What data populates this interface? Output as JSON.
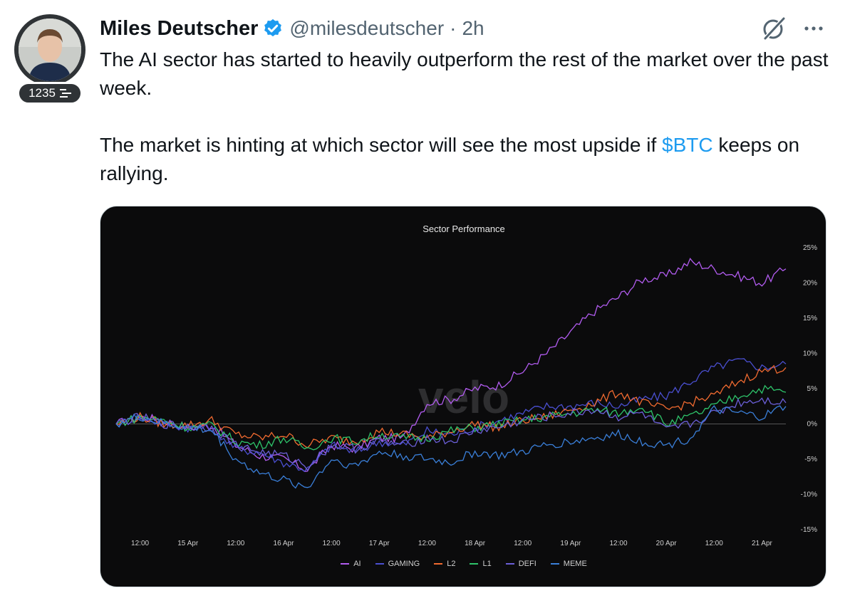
{
  "author": {
    "name": "Miles Deutscher",
    "handle": "@milesdeutscher",
    "separator": "·",
    "time": "2h",
    "badge_count": "1235"
  },
  "icons": {
    "verified": "verified-badge-icon",
    "grok": "grok-icon",
    "more": "more-options-icon",
    "badge": "subscriber-badge-icon"
  },
  "tweet": {
    "line1": "The AI sector has started to heavily outperform the rest of the market over the past week.",
    "line2_before": "The market is hinting at which sector will see the most upside if ",
    "cashtag": "$BTC",
    "line2_after": " keeps on rallying."
  },
  "colors": {
    "accent": "#1d9bf0",
    "text": "#0f1419",
    "muted": "#536471"
  },
  "chart_data": {
    "type": "line",
    "title": "Sector Performance",
    "watermark": "velo",
    "x_tick_labels": [
      "12:00",
      "15 Apr",
      "12:00",
      "16 Apr",
      "12:00",
      "17 Apr",
      "12:00",
      "18 Apr",
      "12:00",
      "19 Apr",
      "12:00",
      "20 Apr",
      "12:00",
      "21 Apr"
    ],
    "y_tick_labels": [
      "25%",
      "20%",
      "15%",
      "10%",
      "5%",
      "0%",
      "-5%",
      "-10%",
      "-15%"
    ],
    "x_range": [
      0,
      28
    ],
    "ylim": [
      -15,
      25
    ],
    "x_tick_positions": [
      1,
      3,
      5,
      7,
      9,
      11,
      13,
      15,
      17,
      19,
      21,
      23,
      25,
      27
    ],
    "zero_line": true,
    "legend_position": "bottom",
    "x": [
      0,
      1,
      2,
      3,
      4,
      5,
      6,
      7,
      8,
      9,
      10,
      11,
      12,
      13,
      14,
      15,
      16,
      17,
      18,
      19,
      20,
      21,
      22,
      23,
      24,
      25,
      26,
      27,
      28
    ],
    "series": [
      {
        "name": "AI",
        "color": "#b25cf0",
        "values": [
          0,
          1,
          0.5,
          -0.5,
          -0.2,
          -3,
          -4.5,
          -5,
          -6.5,
          -3,
          -3.5,
          -2,
          -2,
          3,
          3.5,
          5,
          5.5,
          7.5,
          10,
          13,
          16,
          18,
          20.5,
          21,
          23,
          22,
          21,
          20,
          22
        ]
      },
      {
        "name": "GAMING",
        "color": "#4a4fd0",
        "values": [
          0,
          1,
          0,
          -0.5,
          -0.5,
          -3.5,
          -4,
          -5.5,
          -6.5,
          -3,
          -4,
          -2.5,
          -3,
          -1,
          -1.5,
          -0.5,
          0.5,
          1.5,
          2.5,
          2.5,
          3,
          2.5,
          3.5,
          4,
          6,
          8,
          9,
          8,
          8.5
        ]
      },
      {
        "name": "L2",
        "color": "#f06a30",
        "values": [
          0,
          1,
          0,
          -0.2,
          0.5,
          -1.5,
          -2,
          -1.5,
          -3,
          -2,
          -2.5,
          -1,
          -1.5,
          -2,
          -1,
          0,
          -0.5,
          0.5,
          1,
          2,
          3,
          4.5,
          3,
          2,
          3,
          4,
          6,
          7.5,
          8
        ]
      },
      {
        "name": "L1",
        "color": "#2ec46a",
        "values": [
          0,
          1,
          0.5,
          -0.5,
          -0.2,
          -2.5,
          -3,
          -2,
          -3.5,
          -2,
          -2.5,
          -1.5,
          -2,
          -2,
          -1,
          -0.5,
          0,
          0.5,
          1,
          1.5,
          2,
          1.5,
          2.5,
          0,
          1,
          2.5,
          4,
          5,
          4.5
        ]
      },
      {
        "name": "DEFI",
        "color": "#6b5fd8",
        "values": [
          0,
          1,
          0,
          -0.5,
          -0.5,
          -3,
          -4,
          -4.5,
          -6,
          -3,
          -3.5,
          -2.5,
          -3,
          -2,
          -2.5,
          -1,
          -0.5,
          0.5,
          1,
          1.5,
          2,
          1,
          1.5,
          -1,
          0,
          1.5,
          3,
          3.5,
          3
        ]
      },
      {
        "name": "MEME",
        "color": "#3a7fd9",
        "values": [
          0,
          1,
          0,
          -0.5,
          -1,
          -5,
          -7,
          -8,
          -9,
          -5,
          -6,
          -4,
          -4.5,
          -5,
          -5.5,
          -4,
          -4.5,
          -4,
          -3,
          -2.5,
          -2,
          -1.5,
          -2.5,
          -3,
          -2,
          2,
          1.5,
          1,
          2.5
        ]
      }
    ]
  }
}
